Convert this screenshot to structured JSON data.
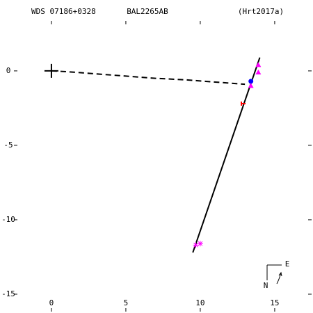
{
  "chart_data": {
    "type": "scatter",
    "title_left": "WDS 07186+0328",
    "title_center": "BAL2265AB",
    "title_right": "(Hrt2017a)",
    "xlim": [
      -2.52,
      17.48
    ],
    "ylim": [
      -16.17,
      3.36
    ],
    "xticks": [
      0,
      5,
      10,
      15
    ],
    "yticks": [
      0,
      -5,
      -10,
      -15
    ],
    "compass": {
      "east": "E",
      "north": "N"
    },
    "series": [
      {
        "kind": "line",
        "style": "dashed",
        "color": "#000000",
        "x": [
          0,
          1,
          3,
          5,
          7,
          9,
          11,
          13
        ],
        "y": [
          0,
          -0.05,
          -0.2,
          -0.35,
          -0.5,
          -0.6,
          -0.75,
          -0.9
        ]
      },
      {
        "kind": "line",
        "style": "solid",
        "color": "#000000",
        "x": [
          9.5,
          14
        ],
        "y": [
          -12.2,
          0.9
        ]
      },
      {
        "kind": "points",
        "marker": "plus",
        "color": "#000000",
        "x": [
          0
        ],
        "y": [
          0
        ]
      },
      {
        "kind": "points",
        "marker": "circle",
        "color": "#0000ff",
        "x": [
          13.4
        ],
        "y": [
          -0.7
        ]
      },
      {
        "kind": "points",
        "marker": "triangle",
        "color": "#ff00ff",
        "x": [
          13.9,
          13.9,
          13.4
        ],
        "y": [
          -0.1,
          0.4,
          -1.0
        ]
      },
      {
        "kind": "points",
        "marker": "hbar",
        "color": "#ff0000",
        "x": [
          12.9
        ],
        "y": [
          -2.2
        ]
      },
      {
        "kind": "points",
        "marker": "asterisk",
        "color": "#ff00ff",
        "x": [
          9.7,
          10
        ],
        "y": [
          -11.7,
          -11.6
        ]
      }
    ]
  }
}
